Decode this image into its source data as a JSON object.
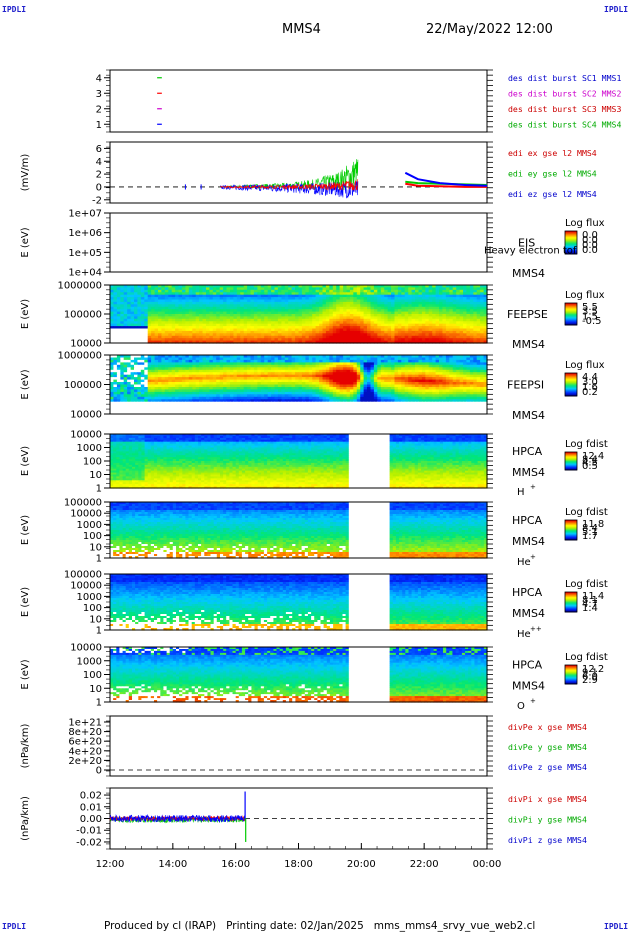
{
  "page": {
    "corner_tl": "IPDLI",
    "corner_tr": "IPDLI",
    "corner_bl": "IPDLI",
    "corner_br": "IPDLI",
    "spacecraft": "MMS4",
    "datetime": "22/May/2022 12:00",
    "footer": "Produced by cl (IRAP)   Printing date: 02/Jan/2025   mms_mms4_srvy_vue_web2.cl"
  },
  "colors": {
    "red": "#ff0000",
    "green": "#00cc00",
    "blue": "#0000ff",
    "magenta": "#cc00cc",
    "orange": "#d08000",
    "darkred": "#cc0000",
    "darkgreen": "#009900",
    "darkblue": "#0000aa"
  },
  "chart_data": [
    {
      "id": "burst",
      "type": "line",
      "ylabel": "",
      "yticks": [
        "1",
        "2",
        "3",
        "4"
      ],
      "legend": [
        {
          "text": "des dist burst SC1 MMS1",
          "color": "#0000cc"
        },
        {
          "text": "des dist burst SC2 MMS2",
          "color": "#cc00cc"
        },
        {
          "text": "des dist burst SC3 MMS3",
          "color": "#cc0000"
        },
        {
          "text": "des dist burst SC4 MMS4",
          "color": "#00aa00"
        }
      ],
      "series": [
        {
          "sc": 1,
          "x": [
            13.5,
            13.65
          ],
          "color": "#0000ff"
        },
        {
          "sc": 2,
          "x": [
            13.5,
            13.65
          ],
          "color": "#cc00cc"
        },
        {
          "sc": 3,
          "x": [
            13.5,
            13.65
          ],
          "color": "#ff0000"
        },
        {
          "sc": 4,
          "x": [
            13.5,
            13.65
          ],
          "color": "#00cc00"
        }
      ]
    },
    {
      "id": "edi",
      "type": "line",
      "ylabel": "(mV/m)",
      "yticks": [
        "-2",
        "0",
        "2",
        "4",
        "6"
      ],
      "ylim": [
        -2.5,
        7
      ],
      "legend": [
        {
          "text": "edi ex gse l2 MMS4",
          "color": "#cc0000"
        },
        {
          "text": "edi ey gse l2 MMS4",
          "color": "#00aa00"
        },
        {
          "text": "edi ez gse l2 MMS4",
          "color": "#0000cc"
        }
      ],
      "envelope": [
        {
          "t": 15.5,
          "gp": 0.1,
          "gn": -0.1,
          "bp": 0.2,
          "bn": -0.3,
          "rp": 0.1,
          "rn": -0.1
        },
        {
          "t": 16.5,
          "gp": 0.4,
          "gn": -0.2,
          "bp": 0.4,
          "bn": -0.6,
          "rp": 0.2,
          "rn": -0.2
        },
        {
          "t": 17.5,
          "gp": 0.6,
          "gn": -0.3,
          "bp": 0.5,
          "bn": -0.8,
          "rp": 0.3,
          "rn": -0.3
        },
        {
          "t": 18.5,
          "gp": 1.2,
          "gn": -0.4,
          "bp": 0.6,
          "bn": -1.2,
          "rp": 0.5,
          "rn": -0.4
        },
        {
          "t": 19.3,
          "gp": 2.5,
          "gn": -0.5,
          "bp": 0.8,
          "bn": -1.6,
          "rp": 0.8,
          "rn": -0.5
        },
        {
          "t": 19.9,
          "gp": 5.0,
          "gn": -0.6,
          "bp": 1.0,
          "bn": -2.0,
          "rp": 1.4,
          "rn": -0.6
        }
      ],
      "recovery": [
        {
          "t": 21.4,
          "b": 2.2,
          "r": 0.5,
          "g": 0.8
        },
        {
          "t": 21.8,
          "b": 1.2,
          "r": 0.2,
          "g": 0.6
        },
        {
          "t": 22.5,
          "b": 0.6,
          "r": 0.1,
          "g": 0.5
        },
        {
          "t": 23.3,
          "b": 0.3,
          "r": 0.0,
          "g": 0.4
        },
        {
          "t": 24.0,
          "b": 0.2,
          "r": 0.0,
          "g": 0.3
        }
      ]
    },
    {
      "id": "eis",
      "type": "heatmap",
      "ylabel": "E (eV)",
      "yticks": [
        "1e+04",
        "1e+05",
        "1e+06",
        "1e+07"
      ],
      "instrument": "EIS",
      "instrument2": "Heavy electron tof",
      "sc": "MMS4",
      "cbar_title": "Log flux",
      "cbar_ticks": [
        "0.0",
        "0.0",
        "0.0",
        "0.0"
      ]
    },
    {
      "id": "feepse",
      "type": "heatmap",
      "ylabel": "E (eV)",
      "yticks": [
        "10000",
        "100000",
        "1000000"
      ],
      "instrument": "FEEPSE",
      "sc": "MMS4",
      "cbar_title": "Log flux",
      "cbar_ticks": [
        "5.5",
        "3.5",
        "1.5",
        "-0.5"
      ]
    },
    {
      "id": "feepsi",
      "type": "heatmap",
      "ylabel": "E (eV)",
      "yticks": [
        "10000",
        "100000",
        "1000000"
      ],
      "instrument": "FEEPSI",
      "sc": "MMS4",
      "cbar_title": "Log flux",
      "cbar_ticks": [
        "4.4",
        "3.0",
        "1.6",
        "0.2"
      ]
    },
    {
      "id": "hpca_h",
      "type": "heatmap",
      "ylabel": "E (eV)",
      "yticks": [
        "1",
        "10",
        "100",
        "1000",
        "10000"
      ],
      "instrument": "HPCA",
      "sc": "MMS4",
      "species": "H",
      "charge": "+",
      "cbar_title": "Log fdist",
      "cbar_ticks": [
        "12.4",
        "8.4",
        "4.5",
        "0.5"
      ],
      "gap": [
        19.6,
        20.95
      ]
    },
    {
      "id": "hpca_he",
      "type": "heatmap",
      "ylabel": "E (eV)",
      "yticks": [
        "1",
        "10",
        "100",
        "1000",
        "10000",
        "100000"
      ],
      "instrument": "HPCA",
      "sc": "MMS4",
      "species": "He",
      "charge": "+",
      "cbar_title": "Log fdist",
      "cbar_ticks": [
        "11.8",
        "8.4",
        "5.1",
        "1.7"
      ],
      "gap": [
        19.6,
        20.95
      ]
    },
    {
      "id": "hpca_he2",
      "type": "heatmap",
      "ylabel": "E (eV)",
      "yticks": [
        "1",
        "10",
        "100",
        "1000",
        "10000",
        "100000"
      ],
      "instrument": "HPCA",
      "sc": "MMS4",
      "species": "He",
      "charge": "++",
      "cbar_title": "Log fdist",
      "cbar_ticks": [
        "11.4",
        "8.1",
        "4.7",
        "1.4"
      ],
      "gap": [
        19.6,
        20.95
      ]
    },
    {
      "id": "hpca_o",
      "type": "heatmap",
      "ylabel": "E (eV)",
      "yticks": [
        "1",
        "10",
        "100",
        "1000",
        "10000"
      ],
      "instrument": "HPCA",
      "sc": "MMS4",
      "species": "O",
      "charge": "+",
      "cbar_title": "Log fdist",
      "cbar_ticks": [
        "12.2",
        "9.1",
        "6.0",
        "2.9"
      ],
      "gap": [
        19.6,
        20.95
      ]
    },
    {
      "id": "divpe",
      "type": "line",
      "ylabel": "(nPa/km)",
      "yticks": [
        "0",
        "2e+20",
        "4e+20",
        "6e+20",
        "8e+20",
        "1e+21"
      ],
      "legend": [
        {
          "text": "divPe x gse MMS4",
          "color": "#cc0000"
        },
        {
          "text": "divPe y gse MMS4",
          "color": "#00aa00"
        },
        {
          "text": "divPe z gse MMS4",
          "color": "#0000cc"
        }
      ]
    },
    {
      "id": "divpi",
      "type": "line",
      "ylabel": "(nPa/km)",
      "yticks": [
        "-0.02",
        "-0.01",
        "0.00",
        "0.01",
        "0.02"
      ],
      "ylim": [
        -0.026,
        0.026
      ],
      "data_end": 16.3,
      "legend": [
        {
          "text": "divPi x gse MMS4",
          "color": "#cc0000"
        },
        {
          "text": "divPi y gse MMS4",
          "color": "#00aa00"
        },
        {
          "text": "divPi z gse MMS4",
          "color": "#0000cc"
        }
      ]
    }
  ],
  "time_axis": {
    "xlim": [
      12,
      24
    ],
    "ticks": [
      12,
      14,
      16,
      18,
      20,
      22,
      24
    ],
    "labels": [
      "12:00",
      "14:00",
      "16:00",
      "18:00",
      "20:00",
      "22:00",
      "00:00"
    ]
  }
}
